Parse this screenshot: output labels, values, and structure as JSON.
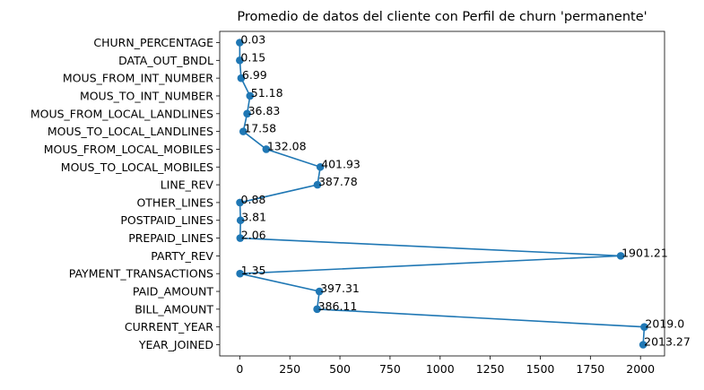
{
  "chart_data": {
    "type": "line",
    "title": "Promedio de datos del cliente con Perfil de churn 'permanente'",
    "xlabel": "",
    "ylabel": "",
    "xlim": [
      -100,
      2120
    ],
    "xticks": [
      0,
      250,
      500,
      750,
      1000,
      1250,
      1500,
      1750,
      2000
    ],
    "xtick_labels": [
      "0",
      "250",
      "500",
      "750",
      "1000",
      "1250",
      "1500",
      "1750",
      "2000"
    ],
    "grid": false,
    "color": "#1f77b4",
    "points": [
      {
        "category": "CHURN_PERCENTAGE",
        "value": 0.03,
        "label": "0.03"
      },
      {
        "category": "DATA_OUT_BNDL",
        "value": 0.15,
        "label": "0.15"
      },
      {
        "category": "MOUS_FROM_INT_NUMBER",
        "value": 6.99,
        "label": "6.99"
      },
      {
        "category": "MOUS_TO_INT_NUMBER",
        "value": 51.18,
        "label": "51.18"
      },
      {
        "category": "MOUS_FROM_LOCAL_LANDLINES",
        "value": 36.83,
        "label": "36.83"
      },
      {
        "category": "MOUS_TO_LOCAL_LANDLINES",
        "value": 17.58,
        "label": "17.58"
      },
      {
        "category": "MOUS_FROM_LOCAL_MOBILES",
        "value": 132.08,
        "label": "132.08"
      },
      {
        "category": "MOUS_TO_LOCAL_MOBILES",
        "value": 401.93,
        "label": "401.93"
      },
      {
        "category": "LINE_REV",
        "value": 387.78,
        "label": "387.78"
      },
      {
        "category": "OTHER_LINES",
        "value": 0.88,
        "label": "0.88"
      },
      {
        "category": "POSTPAID_LINES",
        "value": 3.81,
        "label": "3.81"
      },
      {
        "category": "PREPAID_LINES",
        "value": 2.06,
        "label": "2.06"
      },
      {
        "category": "PARTY_REV",
        "value": 1901.21,
        "label": "1901.21"
      },
      {
        "category": "PAYMENT_TRANSACTIONS",
        "value": 1.35,
        "label": "1.35"
      },
      {
        "category": "PAID_AMOUNT",
        "value": 397.31,
        "label": "397.31"
      },
      {
        "category": "BILL_AMOUNT",
        "value": 386.11,
        "label": "386.11"
      },
      {
        "category": "CURRENT_YEAR",
        "value": 2019.0,
        "label": "2019.0"
      },
      {
        "category": "YEAR_JOINED",
        "value": 2013.27,
        "label": "2013.27"
      }
    ]
  }
}
